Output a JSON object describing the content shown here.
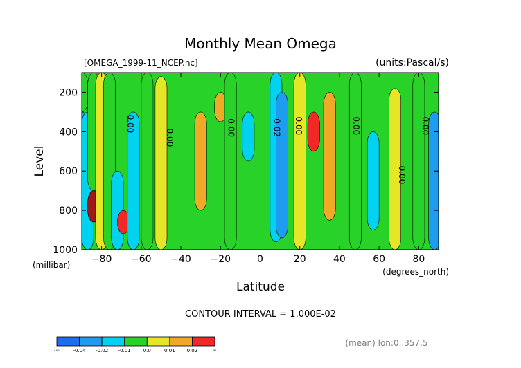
{
  "chart_data": {
    "type": "heatmap",
    "title": "Monthly Mean Omega",
    "file_label": "[OMEGA_1999-11_NCEP.nc]",
    "units_label": "(units:Pascal/s)",
    "xlabel": "Latitude",
    "x_units": "(degrees_north)",
    "ylabel": "Level",
    "y_units": "(millibar)",
    "xlim": [
      -90,
      90
    ],
    "ylim": [
      1000,
      100
    ],
    "x_ticks": [
      -80,
      -60,
      -40,
      -20,
      0,
      20,
      40,
      60,
      80
    ],
    "y_ticks": [
      200,
      400,
      600,
      800,
      1000
    ],
    "contour_interval_label": "CONTOUR INTERVAL = 1.000E-02",
    "mean_note": "(mean) lon:0..357.5",
    "contour_labels": [
      {
        "text": "0.00",
        "lat": -67,
        "level": 360
      },
      {
        "text": "0.00",
        "lat": -47,
        "level": 430
      },
      {
        "text": "0.00",
        "lat": -16,
        "level": 380
      },
      {
        "text": "0.02",
        "lat": 7,
        "level": 380
      },
      {
        "text": "0.00",
        "lat": 18,
        "level": 370
      },
      {
        "text": "0.00",
        "lat": 47,
        "level": 370
      },
      {
        "text": "0.00",
        "lat": 70,
        "level": 620
      },
      {
        "text": "0.00",
        "lat": 82,
        "level": 370
      }
    ],
    "colorbar": {
      "labels": [
        "-∞",
        "-0.04",
        "-0.02",
        "-0.01",
        "0.0",
        "0.01",
        "0.02",
        "∞"
      ],
      "colors": [
        "#1e6cf0",
        "#1e9cf0",
        "#00d2f0",
        "#28d228",
        "#e6e628",
        "#f0aa28",
        "#f02828"
      ]
    },
    "bands": [
      {
        "lat": -90,
        "top": 100,
        "bottom": 300,
        "color": "#28d228"
      },
      {
        "lat": -90,
        "top": 300,
        "bottom": 600,
        "color": "#1e9cf0"
      },
      {
        "lat": -87,
        "top": 300,
        "bottom": 1000,
        "color": "#00d2f0"
      },
      {
        "lat": -84,
        "top": 100,
        "bottom": 700,
        "color": "#28d228"
      },
      {
        "lat": -84,
        "top": 700,
        "bottom": 860,
        "color": "#a01818"
      },
      {
        "lat": -80,
        "top": 100,
        "bottom": 1000,
        "color": "#e6e628"
      },
      {
        "lat": -76,
        "top": 100,
        "bottom": 1000,
        "color": "#28d228"
      },
      {
        "lat": -72,
        "top": 600,
        "bottom": 1000,
        "color": "#00d2f0"
      },
      {
        "lat": -69,
        "top": 800,
        "bottom": 920,
        "color": "#f02828"
      },
      {
        "lat": -64,
        "top": 300,
        "bottom": 1000,
        "color": "#00d2f0"
      },
      {
        "lat": -57,
        "top": 100,
        "bottom": 1000,
        "color": "#28d228"
      },
      {
        "lat": -50,
        "top": 120,
        "bottom": 1000,
        "color": "#e6e628"
      },
      {
        "lat": -30,
        "top": 300,
        "bottom": 800,
        "color": "#f0aa28"
      },
      {
        "lat": -20,
        "top": 200,
        "bottom": 350,
        "color": "#f0aa28"
      },
      {
        "lat": -15,
        "top": 100,
        "bottom": 1000,
        "color": "#28d228"
      },
      {
        "lat": -6,
        "top": 300,
        "bottom": 550,
        "color": "#00d2f0"
      },
      {
        "lat": 8,
        "top": 100,
        "bottom": 960,
        "color": "#00d2f0"
      },
      {
        "lat": 11,
        "top": 200,
        "bottom": 940,
        "color": "#1e9cf0"
      },
      {
        "lat": 20,
        "top": 100,
        "bottom": 1000,
        "color": "#e6e628"
      },
      {
        "lat": 35,
        "top": 200,
        "bottom": 850,
        "color": "#f0aa28"
      },
      {
        "lat": 27,
        "top": 300,
        "bottom": 500,
        "color": "#f02828"
      },
      {
        "lat": 48,
        "top": 100,
        "bottom": 1000,
        "color": "#28d228"
      },
      {
        "lat": 57,
        "top": 400,
        "bottom": 900,
        "color": "#00d2f0"
      },
      {
        "lat": 68,
        "top": 180,
        "bottom": 1000,
        "color": "#e6e628"
      },
      {
        "lat": 80,
        "top": 100,
        "bottom": 1000,
        "color": "#28d228"
      },
      {
        "lat": 88,
        "top": 300,
        "bottom": 1000,
        "color": "#1e9cf0"
      }
    ]
  }
}
